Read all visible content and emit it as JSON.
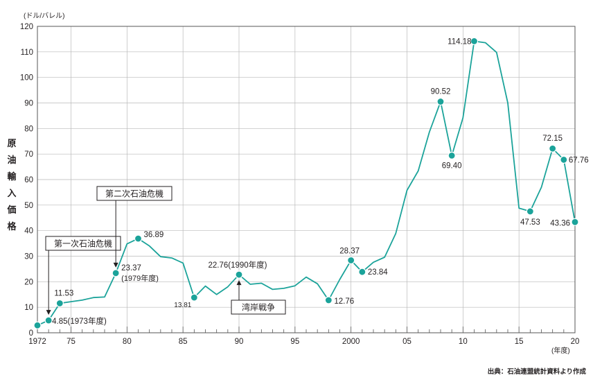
{
  "chart_data": {
    "type": "line",
    "title": "",
    "ylabel": "原油輸入価格",
    "yunit": "(ドル/バレル)",
    "xunit": "(年度)",
    "source": "出典：石油連盟統計資料より作成",
    "ylim": [
      0,
      120
    ],
    "xlim": [
      1972,
      2020
    ],
    "y_ticks": [
      "0",
      "10",
      "20",
      "30",
      "40",
      "50",
      "60",
      "70",
      "80",
      "90",
      "100",
      "110",
      "120"
    ],
    "x_ticks": [
      {
        "year": 1972,
        "label": "1972"
      },
      {
        "year": 1975,
        "label": "75"
      },
      {
        "year": 1980,
        "label": "80"
      },
      {
        "year": 1985,
        "label": "85"
      },
      {
        "year": 1990,
        "label": "90"
      },
      {
        "year": 1995,
        "label": "95"
      },
      {
        "year": 2000,
        "label": "2000"
      },
      {
        "year": 2005,
        "label": "05"
      },
      {
        "year": 2010,
        "label": "10"
      },
      {
        "year": 2015,
        "label": "15"
      },
      {
        "year": 2020,
        "label": "20"
      }
    ],
    "grid": true,
    "line_color": "#1ba39a",
    "marker_color": "#1ba39a",
    "series": [
      {
        "x": [
          1972,
          1973,
          1974,
          1975,
          1976,
          1977,
          1978,
          1979,
          1980,
          1981,
          1982,
          1983,
          1984,
          1985,
          1986,
          1987,
          1988,
          1989,
          1990,
          1991,
          1992,
          1993,
          1994,
          1995,
          1996,
          1997,
          1998,
          1999,
          2000,
          2001,
          2002,
          2003,
          2004,
          2005,
          2006,
          2007,
          2008,
          2009,
          2010,
          2011,
          2012,
          2013,
          2014,
          2015,
          2016,
          2017,
          2018,
          2019,
          2020
        ],
        "y": [
          2.9,
          4.85,
          11.53,
          12.2,
          12.8,
          13.8,
          14.0,
          23.37,
          34.8,
          36.89,
          34.0,
          29.8,
          29.3,
          27.3,
          13.81,
          18.3,
          15.0,
          18.0,
          22.76,
          19.0,
          19.4,
          17.0,
          17.4,
          18.4,
          21.8,
          19.2,
          12.76,
          20.9,
          28.37,
          23.84,
          27.6,
          29.6,
          38.9,
          55.8,
          63.4,
          78.6,
          90.52,
          69.4,
          84.2,
          114.18,
          113.6,
          109.8,
          90.0,
          48.8,
          47.53,
          57.0,
          72.15,
          67.76,
          43.36
        ]
      }
    ],
    "markers": [
      {
        "x": 1972,
        "y": 2.9,
        "label": ""
      },
      {
        "x": 1973,
        "y": 4.85,
        "label": "4.85(1973年度)"
      },
      {
        "x": 1974,
        "y": 11.53,
        "label": "11.53"
      },
      {
        "x": 1979,
        "y": 23.37,
        "label": "23.37"
      },
      {
        "x": 1981,
        "y": 36.89,
        "label": "36.89"
      },
      {
        "x": 1986,
        "y": 13.81,
        "label": "13.81"
      },
      {
        "x": 1990,
        "y": 22.76,
        "label": "22.76(1990年度)"
      },
      {
        "x": 1998,
        "y": 12.76,
        "label": "12.76"
      },
      {
        "x": 2000,
        "y": 28.37,
        "label": "28.37"
      },
      {
        "x": 2001,
        "y": 23.84,
        "label": "23.84"
      },
      {
        "x": 2008,
        "y": 90.52,
        "label": "90.52"
      },
      {
        "x": 2009,
        "y": 69.4,
        "label": "69.40"
      },
      {
        "x": 2011,
        "y": 114.18,
        "label": "114.18"
      },
      {
        "x": 2016,
        "y": 47.53,
        "label": "47.53"
      },
      {
        "x": 2018,
        "y": 72.15,
        "label": "72.15"
      },
      {
        "x": 2019,
        "y": 67.76,
        "label": "67.76"
      },
      {
        "x": 2020,
        "y": 43.36,
        "label": "43.36"
      }
    ],
    "sublabels": [
      {
        "x": 1979,
        "label": "(1979年度)"
      }
    ],
    "annotations": [
      {
        "text": "第一次石油危機",
        "target_x": 1973,
        "target_y": 4.85
      },
      {
        "text": "第二次石油危機",
        "target_x": 1979,
        "target_y": 23.37
      },
      {
        "text": "湾岸戦争",
        "target_x": 1990,
        "target_y": 22.76
      }
    ]
  }
}
